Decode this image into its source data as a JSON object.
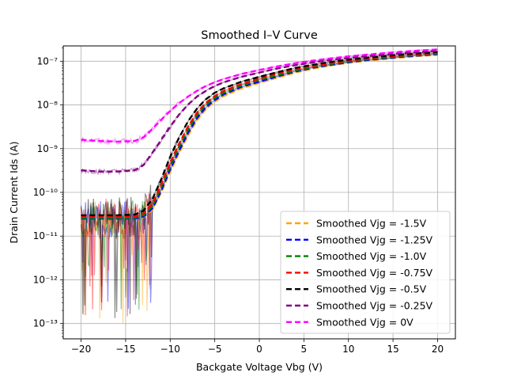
{
  "chart_data": {
    "type": "line",
    "title": "Smoothed I–V Curve",
    "xlabel": "Backgate Voltage Vbg (V)",
    "ylabel": "Drain Current Ids (A)",
    "xlim": [
      -22,
      22
    ],
    "ylim_log10": [
      -13.35,
      -6.65
    ],
    "y_scale": "log",
    "grid": true,
    "legend_position": "lower right",
    "x_ticks": [
      -20,
      -15,
      -10,
      -5,
      0,
      5,
      10,
      15,
      20
    ],
    "y_ticks": [
      {
        "label": "10⁻¹³",
        "value": 1e-13
      },
      {
        "label": "10⁻¹²",
        "value": 1e-12
      },
      {
        "label": "10⁻¹¹",
        "value": 1e-11
      },
      {
        "label": "10⁻¹⁰",
        "value": 1e-10
      },
      {
        "label": "10⁻⁹",
        "value": 1e-09
      },
      {
        "label": "10⁻⁸",
        "value": 1e-08
      },
      {
        "label": "10⁻⁷",
        "value": 1e-07
      }
    ],
    "x": [
      -20,
      -18,
      -16,
      -14,
      -13,
      -12,
      -11,
      -10,
      -9,
      -8,
      -7,
      -6,
      -5,
      -4,
      -2,
      0,
      2,
      4,
      6,
      8,
      10,
      12,
      14,
      16,
      18,
      20
    ],
    "series": [
      {
        "name": "Smoothed Vjg = -1.5V",
        "color": "#ffa500",
        "values": [
          2.5e-11,
          2.5e-11,
          2.5e-11,
          2.5e-11,
          2.7e-11,
          4e-11,
          1e-10,
          3e-10,
          8e-10,
          2e-09,
          4.5e-09,
          8e-09,
          1.2e-08,
          1.6e-08,
          2.4e-08,
          3.2e-08,
          4.2e-08,
          5.5e-08,
          6.8e-08,
          8e-08,
          9.2e-08,
          1.02e-07,
          1.12e-07,
          1.22e-07,
          1.32e-07,
          1.4e-07
        ]
      },
      {
        "name": "Smoothed Vjg = -1.25V",
        "color": "#0000ff",
        "values": [
          2.5e-11,
          2.5e-11,
          2.5e-11,
          2.5e-11,
          2.8e-11,
          4.3e-11,
          1.1e-10,
          3.4e-10,
          9e-10,
          2.3e-09,
          5e-09,
          8.8e-09,
          1.3e-08,
          1.75e-08,
          2.6e-08,
          3.4e-08,
          4.5e-08,
          5.8e-08,
          7.1e-08,
          8.3e-08,
          9.5e-08,
          1.06e-07,
          1.16e-07,
          1.26e-07,
          1.36e-07,
          1.45e-07
        ]
      },
      {
        "name": "Smoothed Vjg = -1.0V",
        "color": "#008000",
        "values": [
          2.6e-11,
          2.6e-11,
          2.6e-11,
          2.6e-11,
          3e-11,
          4.8e-11,
          1.3e-10,
          4e-10,
          1.1e-09,
          2.7e-09,
          5.8e-09,
          1e-08,
          1.45e-08,
          1.9e-08,
          2.8e-08,
          3.7e-08,
          4.8e-08,
          6.1e-08,
          7.4e-08,
          8.6e-08,
          9.9e-08,
          1.1e-07,
          1.2e-07,
          1.3e-07,
          1.4e-07,
          1.5e-07
        ]
      },
      {
        "name": "Smoothed Vjg = -0.75V",
        "color": "#ff0000",
        "values": [
          2.8e-11,
          2.8e-11,
          2.8e-11,
          2.8e-11,
          3.3e-11,
          5.5e-11,
          1.5e-10,
          4.8e-10,
          1.3e-09,
          3.2e-09,
          6.6e-09,
          1.12e-08,
          1.6e-08,
          2.1e-08,
          3e-08,
          4e-08,
          5.2e-08,
          6.5e-08,
          7.8e-08,
          9e-08,
          1.03e-07,
          1.14e-07,
          1.25e-07,
          1.35e-07,
          1.45e-07,
          1.55e-07
        ]
      },
      {
        "name": "Smoothed Vjg = -0.5V",
        "color": "#000000",
        "values": [
          3e-11,
          3e-11,
          3e-11,
          3.1e-11,
          3.8e-11,
          7e-11,
          2e-10,
          6.5e-10,
          1.8e-09,
          4.2e-09,
          8.2e-09,
          1.35e-08,
          1.9e-08,
          2.4e-08,
          3.4e-08,
          4.4e-08,
          5.6e-08,
          7e-08,
          8.3e-08,
          9.6e-08,
          1.09e-07,
          1.2e-07,
          1.31e-07,
          1.42e-07,
          1.52e-07,
          1.62e-07
        ]
      },
      {
        "name": "Smoothed Vjg = -0.25V",
        "color": "#800080",
        "values": [
          3.2e-10,
          3e-10,
          3e-10,
          3.2e-10,
          4.2e-10,
          8e-10,
          1.6e-09,
          3.2e-09,
          6e-09,
          1.02e-08,
          1.55e-08,
          2.1e-08,
          2.7e-08,
          3.3e-08,
          4.4e-08,
          5.5e-08,
          6.8e-08,
          8.1e-08,
          9.4e-08,
          1.07e-07,
          1.19e-07,
          1.3e-07,
          1.41e-07,
          1.52e-07,
          1.62e-07,
          1.72e-07
        ]
      },
      {
        "name": "Smoothed Vjg = 0V",
        "color": "#ff00ff",
        "values": [
          1.6e-09,
          1.5e-09,
          1.45e-09,
          1.5e-09,
          1.8e-09,
          2.8e-09,
          4.6e-09,
          7.3e-09,
          1.1e-08,
          1.55e-08,
          2.1e-08,
          2.7e-08,
          3.3e-08,
          3.9e-08,
          5.1e-08,
          6.3e-08,
          7.6e-08,
          9e-08,
          1.03e-07,
          1.16e-07,
          1.29e-07,
          1.41e-07,
          1.53e-07,
          1.65e-07,
          1.76e-07,
          1.86e-07
        ]
      }
    ]
  }
}
